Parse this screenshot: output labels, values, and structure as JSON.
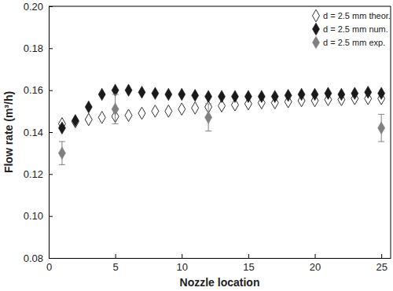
{
  "chart_data": {
    "type": "scatter",
    "x_label": "Nozzle location",
    "y_label": "Flow rate (m³/h)",
    "xlim": [
      0,
      25.7
    ],
    "xticks": [
      0,
      5,
      10,
      15,
      20,
      25
    ],
    "ylim": [
      0.08,
      0.2
    ],
    "yticks": [
      0.08,
      {
        "value": 0.1,
        "label": "0.10"
      },
      0.12,
      0.14,
      0.16,
      0.18,
      {
        "value": 0.2,
        "label": "0.20"
      }
    ],
    "grid": false,
    "legend": "upper right",
    "series": [
      {
        "name": "d = 2.5 mm theor.",
        "color": "#333333",
        "marker": "diamond-open",
        "x": [
          1,
          2,
          3,
          4,
          5,
          6,
          7,
          8,
          9,
          10,
          11,
          12,
          13,
          14,
          15,
          16,
          17,
          18,
          19,
          20,
          21,
          22,
          23,
          24,
          25
        ],
        "values": [
          0.144,
          0.145,
          0.146,
          0.147,
          0.1475,
          0.148,
          0.149,
          0.15,
          0.15,
          0.151,
          0.1515,
          0.152,
          0.1525,
          0.153,
          0.1535,
          0.154,
          0.154,
          0.1545,
          0.155,
          0.155,
          0.1555,
          0.1555,
          0.156,
          0.156,
          0.156
        ]
      },
      {
        "name": "d = 2.5 mm num.",
        "color": "#1a1a1a",
        "marker": "diamond",
        "x": [
          1,
          2,
          3,
          4,
          5,
          6,
          7,
          8,
          9,
          10,
          11,
          12,
          13,
          14,
          15,
          16,
          17,
          18,
          19,
          20,
          21,
          22,
          23,
          24,
          25
        ],
        "values": [
          0.142,
          0.1455,
          0.152,
          0.158,
          0.16,
          0.16,
          0.159,
          0.1585,
          0.158,
          0.158,
          0.1575,
          0.157,
          0.157,
          0.157,
          0.157,
          0.157,
          0.157,
          0.1575,
          0.158,
          0.158,
          0.1585,
          0.158,
          0.1585,
          0.159,
          0.1585
        ]
      },
      {
        "name": "d = 2.5 mm exp.",
        "color": "#808080",
        "marker": "diamond",
        "x": [
          1,
          5,
          12,
          25
        ],
        "values": [
          0.13,
          0.151,
          0.147,
          0.142
        ],
        "errors": [
          0.0055,
          0.007,
          0.0065,
          0.0065
        ]
      }
    ]
  }
}
